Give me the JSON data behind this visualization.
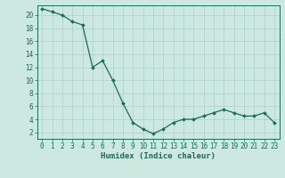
{
  "x": [
    0,
    1,
    2,
    3,
    4,
    5,
    6,
    7,
    8,
    9,
    10,
    11,
    12,
    13,
    14,
    15,
    16,
    17,
    18,
    19,
    20,
    21,
    22,
    23
  ],
  "y": [
    21,
    20.5,
    20,
    19,
    18.5,
    12,
    13,
    10,
    6.5,
    3.5,
    2.5,
    1.8,
    2.5,
    3.5,
    4,
    4,
    4.5,
    5,
    5.5,
    5,
    4.5,
    4.5,
    5,
    3.5
  ],
  "line_color": "#1a6b5a",
  "marker_color": "#1a6b5a",
  "bg_color": "#cce8e0",
  "grid_color": "#b0d4cc",
  "xlabel": "Humidex (Indice chaleur)",
  "xlim": [
    -0.5,
    23.5
  ],
  "ylim": [
    1,
    21.5
  ],
  "yticks": [
    2,
    4,
    6,
    8,
    10,
    12,
    14,
    16,
    18,
    20
  ],
  "xticks": [
    0,
    1,
    2,
    3,
    4,
    5,
    6,
    7,
    8,
    9,
    10,
    11,
    12,
    13,
    14,
    15,
    16,
    17,
    18,
    19,
    20,
    21,
    22,
    23
  ],
  "xlabel_fontsize": 6.5,
  "tick_fontsize": 5.5,
  "linewidth": 0.9,
  "markersize": 2.0
}
